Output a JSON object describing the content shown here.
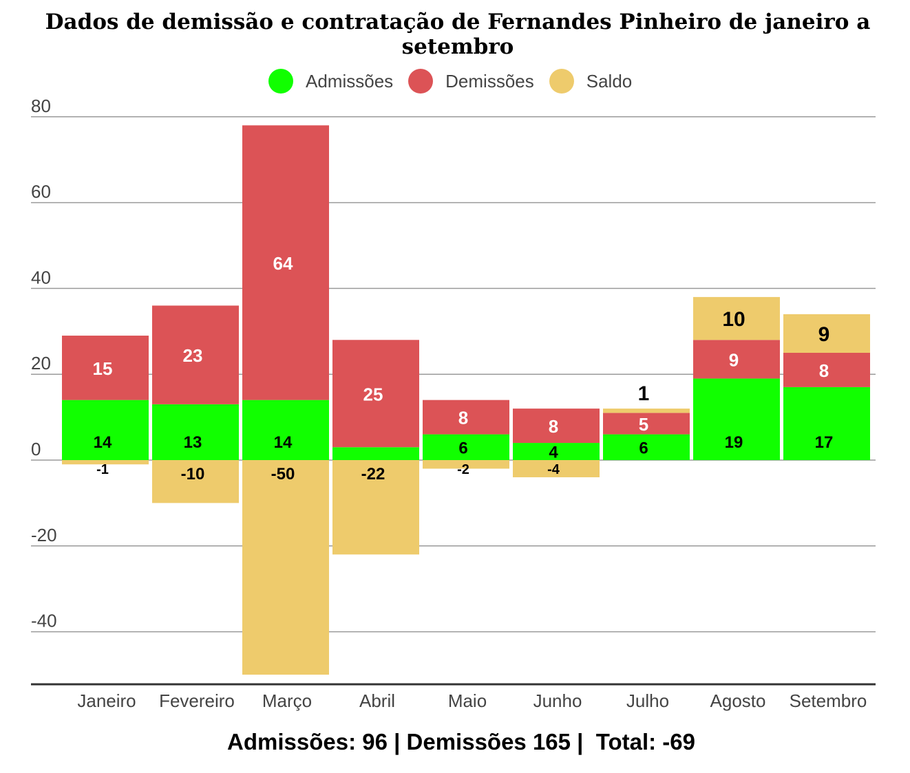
{
  "chart_data": {
    "type": "bar",
    "title": "Dados de demissão e contratação de Fernandes Pinheiro de janeiro a setembro",
    "categories": [
      "Janeiro",
      "Fevereiro",
      "Março",
      "Abril",
      "Maio",
      "Junho",
      "Julho",
      "Agosto",
      "Setembro"
    ],
    "series": [
      {
        "name": "Admissões",
        "color": "#11ff00",
        "values": [
          14,
          13,
          14,
          3,
          6,
          4,
          6,
          19,
          17
        ],
        "labels": [
          "14",
          "13",
          "14",
          "",
          "6",
          "4",
          "6",
          "19",
          "17"
        ]
      },
      {
        "name": "Demissões",
        "color": "#dc5356",
        "values": [
          15,
          23,
          64,
          25,
          8,
          8,
          5,
          9,
          8
        ],
        "labels": [
          "15",
          "23",
          "64",
          "25",
          "8",
          "8",
          "5",
          "9",
          "8"
        ]
      },
      {
        "name": "Saldo",
        "color": "#eecb6c",
        "values": [
          -1,
          -10,
          -50,
          -22,
          -2,
          -4,
          1,
          10,
          9
        ],
        "labels": [
          "-1",
          "-10",
          "-50",
          "-22",
          "-2",
          "-4",
          "1",
          "10",
          "9"
        ]
      }
    ],
    "yticks": [
      "80",
      "60",
      "40",
      "20",
      "0",
      "-20",
      "-40"
    ],
    "ylim": [
      -52,
      80
    ],
    "legend": "top",
    "grid": true,
    "stacked": true
  },
  "summary": "Admissões: 96 | Demissões 165 |  Total: -69"
}
